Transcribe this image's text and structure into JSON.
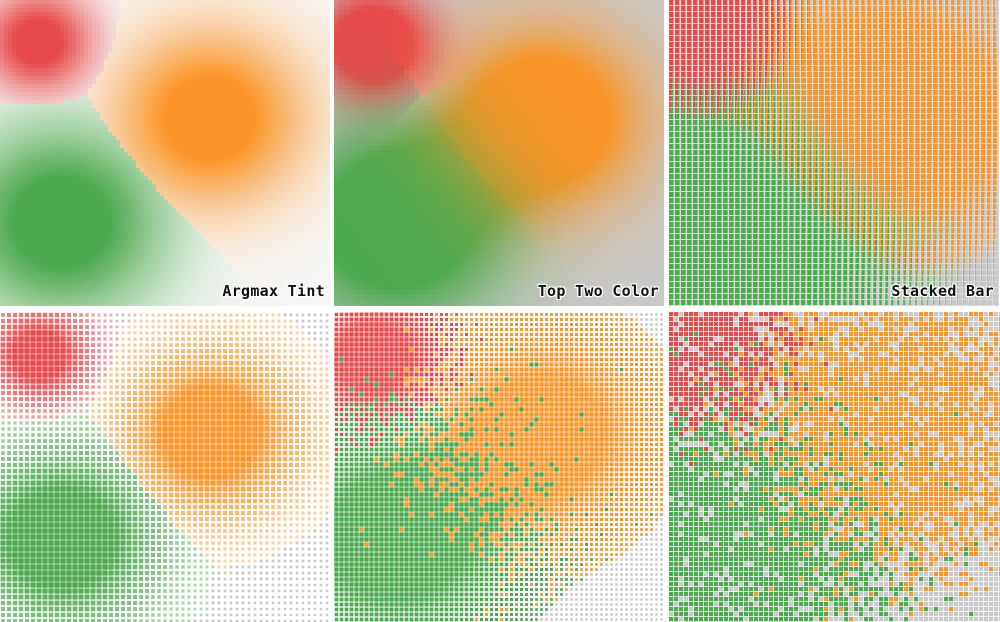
{
  "panels": [
    {
      "id": "argmax-tint",
      "caption": "Argmax Tint"
    },
    {
      "id": "top-two-color",
      "caption": "Top Two Color"
    },
    {
      "id": "stacked-bar",
      "caption": "Stacked Bar"
    },
    {
      "id": "weighted-squares",
      "caption": ""
    },
    {
      "id": "dithered-top-two",
      "caption": ""
    },
    {
      "id": "random-sample",
      "caption": ""
    }
  ],
  "categories": [
    {
      "name": "red",
      "color": "#e84a4a"
    },
    {
      "name": "orange",
      "color": "#fb9527"
    },
    {
      "name": "green",
      "color": "#4caa4e"
    }
  ],
  "colors": {
    "background": "#ffffff",
    "neutral": "#c9c9c9",
    "red": "#e84a4a",
    "orange": "#fb9527",
    "green": "#4caa4e"
  }
}
